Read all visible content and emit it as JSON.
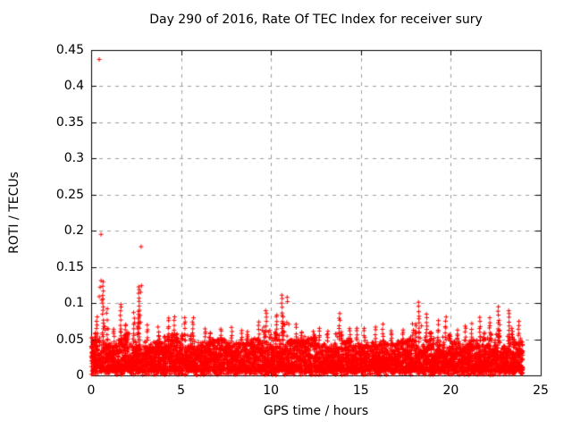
{
  "chart_data": {
    "type": "scatter",
    "title": "Day 290 of 2016, Rate Of TEC Index for receiver sury",
    "xlabel": "GPS time / hours",
    "ylabel": "ROTI / TECUs",
    "xlim": [
      0,
      25
    ],
    "ylim": [
      0,
      0.45
    ],
    "xticks": {
      "values": [
        0,
        5,
        10,
        15,
        20,
        25
      ],
      "labels": [
        "0",
        "5",
        "10",
        "15",
        "20",
        "25"
      ]
    },
    "yticks": {
      "values": [
        0,
        0.05,
        0.1,
        0.15,
        0.2,
        0.25,
        0.3,
        0.35,
        0.4,
        0.45
      ],
      "labels": [
        "0",
        "0.05",
        "0.1",
        "0.15",
        "0.2",
        "0.25",
        "0.3",
        "0.35",
        "0.4",
        "0.45"
      ]
    },
    "grid": true,
    "legend": "none",
    "marker": "plus",
    "marker_color": "#ff0000",
    "grid_color": "#9e9e9e",
    "border_color": "#000000",
    "background_color": "#ffffff",
    "x_data_range": [
      0,
      24
    ],
    "bin_width_hours": 0.5,
    "dense_band": [
      0.006,
      0.05
    ],
    "bin_peaks": [
      0.08,
      0.13,
      0.065,
      0.1,
      0.085,
      0.124,
      0.07,
      0.065,
      0.08,
      0.08,
      0.08,
      0.08,
      0.065,
      0.06,
      0.065,
      0.065,
      0.06,
      0.06,
      0.075,
      0.09,
      0.085,
      0.11,
      0.07,
      0.06,
      0.06,
      0.065,
      0.06,
      0.085,
      0.065,
      0.065,
      0.065,
      0.066,
      0.07,
      0.062,
      0.064,
      0.07,
      0.1,
      0.085,
      0.075,
      0.08,
      0.062,
      0.07,
      0.07,
      0.08,
      0.08,
      0.095,
      0.09,
      0.075
    ],
    "outliers": [
      [
        0.45,
        0.437
      ],
      [
        0.55,
        0.195
      ],
      [
        2.78,
        0.178
      ],
      [
        0.55,
        0.131
      ],
      [
        0.5,
        0.122
      ],
      [
        0.45,
        0.109
      ],
      [
        0.6,
        0.104
      ],
      [
        2.8,
        0.124
      ],
      [
        2.75,
        0.115
      ],
      [
        10.9,
        0.108
      ],
      [
        10.92,
        0.102
      ]
    ]
  }
}
